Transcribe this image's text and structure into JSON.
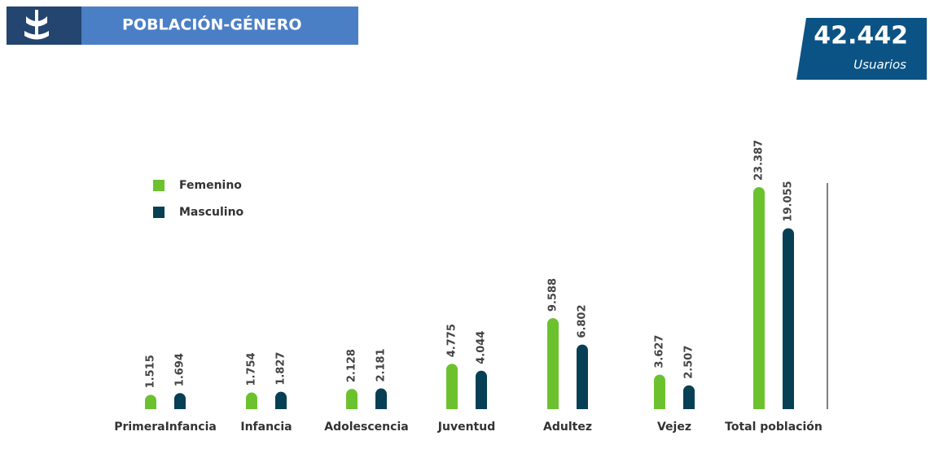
{
  "header": {
    "title": "POBLACIÓN-GÉNERO",
    "total": "42.442",
    "total_label": "Usuarios"
  },
  "chart_data": {
    "type": "bar",
    "categories": [
      "PrimeraInfancia",
      "Infancia",
      "Adolescencia",
      "Juventud",
      "Adultez",
      "Vejez",
      "Total población"
    ],
    "series": [
      {
        "name": "Femenino",
        "color": "#6cc22e",
        "values": [
          1515,
          1754,
          2128,
          4775,
          9588,
          3627,
          23387
        ],
        "value_labels": [
          "1.515",
          "1.754",
          "2.128",
          "4.775",
          "9.588",
          "3.627",
          "23.387"
        ]
      },
      {
        "name": "Masculino",
        "color": "#073f55",
        "values": [
          1694,
          1827,
          2181,
          4044,
          6802,
          2507,
          19055
        ],
        "value_labels": [
          "1.694",
          "1.827",
          "2.181",
          "4.044",
          "6.802",
          "2.507",
          "19.055"
        ]
      }
    ]
  }
}
